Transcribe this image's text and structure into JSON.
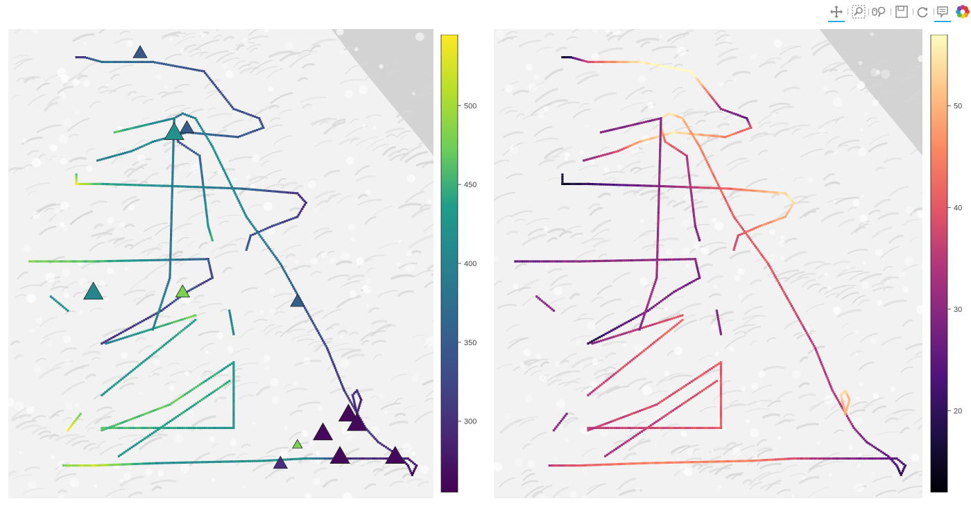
{
  "toolbar": {
    "tools": [
      {
        "name": "pan-tool",
        "icon": "pan-icon",
        "active": true
      },
      {
        "name": "box-zoom-tool",
        "icon": "box-zoom-icon",
        "active": false
      },
      {
        "name": "wheel-zoom-tool",
        "icon": "wheel-zoom-icon",
        "active": false
      },
      {
        "name": "save-tool",
        "icon": "save-icon",
        "active": false
      },
      {
        "name": "reset-tool",
        "icon": "reset-icon",
        "active": false
      },
      {
        "name": "hover-tool",
        "icon": "hover-icon",
        "active": true
      },
      {
        "name": "bokeh-logo",
        "icon": "bokeh-logo-icon",
        "active": false
      }
    ]
  },
  "chart_data": [
    {
      "type": "scatter",
      "title": "",
      "colormap": "viridis",
      "colorbar": {
        "min": 255,
        "max": 545,
        "ticks": [
          300,
          350,
          400,
          450,
          500
        ]
      },
      "value_range": [
        255,
        545
      ],
      "markers": [
        {
          "x": 0.31,
          "y": 0.95,
          "value": 345,
          "size": "small"
        },
        {
          "x": 0.39,
          "y": 0.78,
          "value": 420,
          "size": "large"
        },
        {
          "x": 0.42,
          "y": 0.79,
          "value": 350,
          "size": "small"
        },
        {
          "x": 0.2,
          "y": 0.44,
          "value": 405,
          "size": "large"
        },
        {
          "x": 0.41,
          "y": 0.44,
          "value": 480,
          "size": "small"
        },
        {
          "x": 0.68,
          "y": 0.42,
          "value": 355,
          "size": "small"
        },
        {
          "x": 0.8,
          "y": 0.18,
          "value": 262,
          "size": "large"
        },
        {
          "x": 0.82,
          "y": 0.16,
          "value": 262,
          "size": "large"
        },
        {
          "x": 0.74,
          "y": 0.14,
          "value": 262,
          "size": "large"
        },
        {
          "x": 0.68,
          "y": 0.115,
          "value": 480,
          "size": "tiny"
        },
        {
          "x": 0.78,
          "y": 0.09,
          "value": 262,
          "size": "large"
        },
        {
          "x": 0.91,
          "y": 0.09,
          "value": 262,
          "size": "large"
        },
        {
          "x": 0.64,
          "y": 0.075,
          "value": 300,
          "size": "small"
        }
      ]
    },
    {
      "type": "scatter",
      "title": "",
      "colormap": "magma",
      "colorbar": {
        "min": 12,
        "max": 57,
        "ticks": [
          20,
          30,
          40,
          50
        ]
      },
      "value_range": [
        12,
        57
      ]
    }
  ],
  "tracks": [
    {
      "pts": [
        [
          0.16,
          0.94
        ],
        [
          0.18,
          0.94
        ],
        [
          0.22,
          0.93
        ],
        [
          0.34,
          0.93
        ],
        [
          0.46,
          0.91
        ],
        [
          0.53,
          0.83
        ],
        [
          0.59,
          0.81
        ],
        [
          0.6,
          0.79
        ],
        [
          0.54,
          0.77
        ],
        [
          0.42,
          0.78
        ],
        [
          0.34,
          0.76
        ],
        [
          0.29,
          0.74
        ],
        [
          0.21,
          0.72
        ]
      ],
      "v": [
        300,
        320,
        380,
        360,
        330,
        340,
        330,
        340,
        350,
        360,
        410,
        400,
        390
      ],
      "w": [
        15,
        20,
        38,
        55,
        60,
        30,
        25,
        40,
        45,
        55,
        50,
        38,
        30
      ]
    },
    {
      "pts": [
        [
          0.16,
          0.69
        ],
        [
          0.16,
          0.67
        ],
        [
          0.22,
          0.67
        ],
        [
          0.4,
          0.665
        ],
        [
          0.55,
          0.66
        ],
        [
          0.68,
          0.65
        ],
        [
          0.7,
          0.63
        ],
        [
          0.68,
          0.6
        ],
        [
          0.62,
          0.58
        ],
        [
          0.57,
          0.56
        ],
        [
          0.56,
          0.53
        ]
      ],
      "v": [
        470,
        530,
        440,
        410,
        370,
        300,
        290,
        310,
        330,
        340,
        360
      ],
      "w": [
        18,
        15,
        20,
        30,
        42,
        54,
        55,
        50,
        45,
        40,
        38
      ]
    },
    {
      "pts": [
        [
          0.05,
          0.505
        ],
        [
          0.2,
          0.505
        ],
        [
          0.47,
          0.51
        ],
        [
          0.48,
          0.47
        ],
        [
          0.42,
          0.44
        ],
        [
          0.36,
          0.4
        ],
        [
          0.22,
          0.33
        ]
      ],
      "v": [
        480,
        460,
        350,
        310,
        330,
        320,
        300
      ],
      "w": [
        25,
        30,
        30,
        26,
        28,
        28,
        18
      ]
    },
    {
      "pts": [
        [
          0.1,
          0.43
        ],
        [
          0.14,
          0.4
        ]
      ],
      "v": [
        410,
        420
      ],
      "w": [
        30,
        30
      ]
    },
    {
      "pts": [
        [
          0.23,
          0.33
        ],
        [
          0.44,
          0.39
        ]
      ],
      "v": [
        390,
        480
      ],
      "w": [
        30,
        40
      ]
    },
    {
      "pts": [
        [
          0.22,
          0.22
        ],
        [
          0.44,
          0.38
        ]
      ],
      "v": [
        420,
        440
      ],
      "w": [
        35,
        42
      ]
    },
    {
      "pts": [
        [
          0.52,
          0.4
        ],
        [
          0.53,
          0.35
        ]
      ],
      "v": [
        400,
        410
      ],
      "w": [
        30,
        30
      ]
    },
    {
      "pts": [
        [
          0.14,
          0.145
        ],
        [
          0.17,
          0.18
        ]
      ],
      "v": [
        540,
        480
      ],
      "w": [
        30,
        30
      ]
    },
    {
      "pts": [
        [
          0.22,
          0.145
        ],
        [
          0.38,
          0.2
        ],
        [
          0.53,
          0.29
        ],
        [
          0.53,
          0.15
        ],
        [
          0.22,
          0.15
        ]
      ],
      "v": [
        450,
        470,
        430,
        420,
        460
      ],
      "w": [
        35,
        38,
        40,
        40,
        35
      ]
    },
    {
      "pts": [
        [
          0.26,
          0.09
        ],
        [
          0.52,
          0.25
        ]
      ],
      "v": [
        420,
        450
      ],
      "w": [
        32,
        40
      ]
    },
    {
      "pts": [
        [
          0.13,
          0.07
        ],
        [
          0.2,
          0.07
        ],
        [
          0.35,
          0.075
        ],
        [
          0.6,
          0.08
        ],
        [
          0.7,
          0.085
        ],
        [
          0.8,
          0.085
        ],
        [
          0.94,
          0.085
        ],
        [
          0.96,
          0.07
        ],
        [
          0.95,
          0.05
        ],
        [
          0.94,
          0.07
        ],
        [
          0.92,
          0.09
        ],
        [
          0.87,
          0.12
        ],
        [
          0.84,
          0.15
        ]
      ],
      "v": [
        480,
        520,
        410,
        420,
        410,
        300,
        285,
        280,
        270,
        280,
        290,
        300,
        310
      ],
      "w": [
        35,
        40,
        45,
        45,
        38,
        30,
        25,
        22,
        20,
        22,
        25,
        28,
        30
      ]
    },
    {
      "pts": [
        [
          0.84,
          0.15
        ],
        [
          0.79,
          0.23
        ],
        [
          0.75,
          0.32
        ],
        [
          0.64,
          0.5
        ],
        [
          0.56,
          0.6
        ],
        [
          0.48,
          0.75
        ],
        [
          0.44,
          0.81
        ],
        [
          0.41,
          0.82
        ],
        [
          0.39,
          0.81
        ],
        [
          0.39,
          0.79
        ],
        [
          0.4,
          0.76
        ],
        [
          0.45,
          0.73
        ],
        [
          0.47,
          0.58
        ],
        [
          0.48,
          0.55
        ]
      ],
      "v": [
        300,
        310,
        320,
        370,
        400,
        420,
        400,
        380,
        360,
        340,
        330,
        360,
        420,
        450
      ],
      "w": [
        32,
        35,
        35,
        40,
        40,
        45,
        50,
        55,
        55,
        50,
        42,
        35,
        30,
        28
      ]
    },
    {
      "pts": [
        [
          0.82,
          0.18
        ],
        [
          0.81,
          0.22
        ],
        [
          0.82,
          0.23
        ],
        [
          0.83,
          0.21
        ],
        [
          0.82,
          0.18
        ]
      ],
      "v": [
        295,
        305,
        300,
        290,
        295
      ],
      "w": [
        48,
        52,
        53,
        50,
        48
      ]
    },
    {
      "pts": [
        [
          0.25,
          0.78
        ],
        [
          0.39,
          0.81
        ],
        [
          0.38,
          0.47
        ],
        [
          0.34,
          0.36
        ]
      ],
      "v": [
        460,
        390,
        380,
        400
      ],
      "w": [
        28,
        30,
        32,
        30
      ]
    }
  ],
  "map": {
    "land": "#f2f2f2",
    "ridge": "#d6d6d6",
    "highland": "#cfcfcf"
  }
}
